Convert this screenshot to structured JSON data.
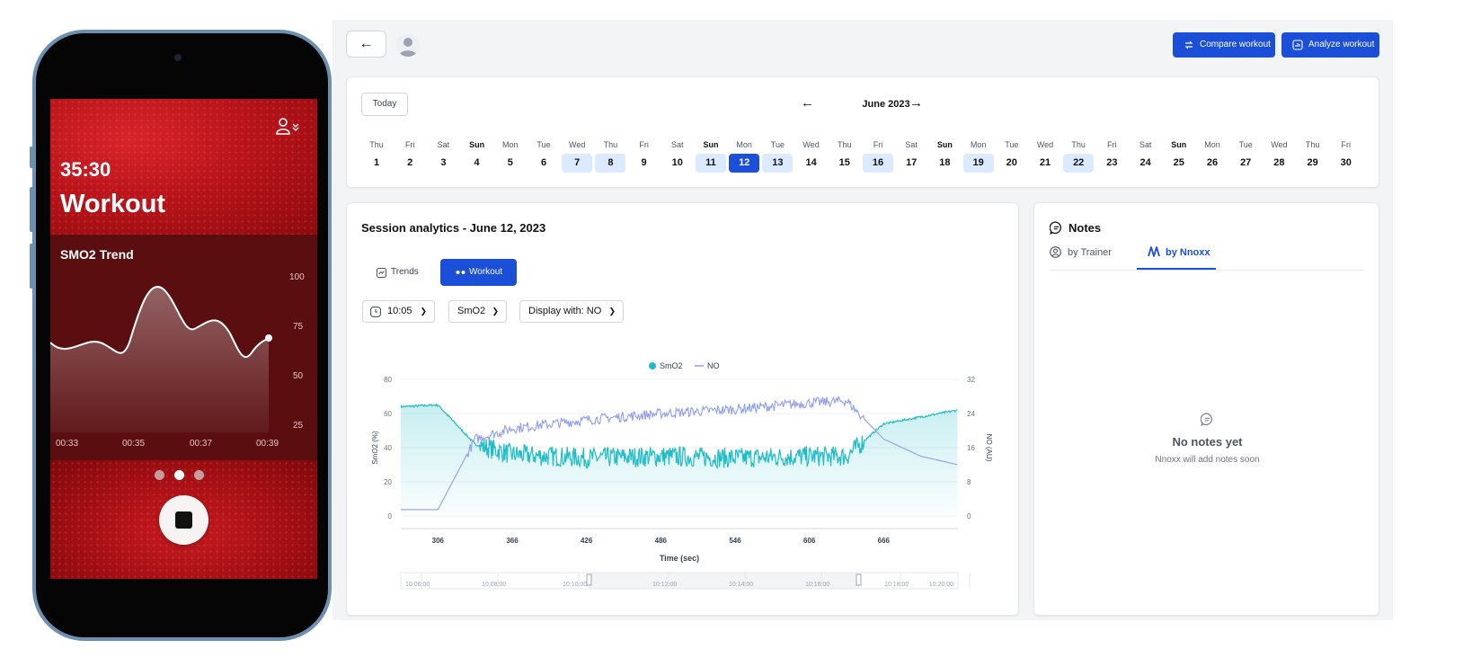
{
  "phone": {
    "time": "35:30",
    "title": "Workout",
    "chart_title": "SMO2 Trend",
    "y_ticks": [
      "100",
      "75",
      "50",
      "25"
    ],
    "x_ticks": [
      "00:33",
      "00:35",
      "00:37",
      "00:39"
    ],
    "pager_active_index": 1
  },
  "header": {
    "back_icon": "arrow-left-icon",
    "compare_label": "Compare workout",
    "analyze_label": "Analyze workout",
    "accent_color": "#1b4fd8"
  },
  "calendar": {
    "today_label": "Today",
    "month": "June 2023",
    "days": [
      {
        "dow": "Thu",
        "dom": "1"
      },
      {
        "dow": "Fri",
        "dom": "2"
      },
      {
        "dow": "Sat",
        "dom": "3"
      },
      {
        "dow": "Sun",
        "dom": "4"
      },
      {
        "dow": "Mon",
        "dom": "5"
      },
      {
        "dow": "Tue",
        "dom": "6"
      },
      {
        "dow": "Wed",
        "dom": "7",
        "hl": true
      },
      {
        "dow": "Thu",
        "dom": "8",
        "hl": true
      },
      {
        "dow": "Fri",
        "dom": "9"
      },
      {
        "dow": "Sat",
        "dom": "10"
      },
      {
        "dow": "Sun",
        "dom": "11",
        "hl": true
      },
      {
        "dow": "Mon",
        "dom": "12",
        "sel": true
      },
      {
        "dow": "Tue",
        "dom": "13",
        "hl": true
      },
      {
        "dow": "Wed",
        "dom": "14"
      },
      {
        "dow": "Thu",
        "dom": "15"
      },
      {
        "dow": "Fri",
        "dom": "16",
        "hl": true
      },
      {
        "dow": "Sat",
        "dom": "17"
      },
      {
        "dow": "Sun",
        "dom": "18"
      },
      {
        "dow": "Mon",
        "dom": "19",
        "hl": true
      },
      {
        "dow": "Tue",
        "dom": "20"
      },
      {
        "dow": "Wed",
        "dom": "21"
      },
      {
        "dow": "Thu",
        "dom": "22",
        "hl": true
      },
      {
        "dow": "Fri",
        "dom": "23"
      },
      {
        "dow": "Sat",
        "dom": "24"
      },
      {
        "dow": "Sun",
        "dom": "25"
      },
      {
        "dow": "Mon",
        "dom": "26"
      },
      {
        "dow": "Tue",
        "dom": "27"
      },
      {
        "dow": "Wed",
        "dom": "28"
      },
      {
        "dow": "Thu",
        "dom": "29"
      },
      {
        "dow": "Fri",
        "dom": "30"
      }
    ]
  },
  "session": {
    "title": "Session analytics - June 12, 2023",
    "tabs": {
      "trends": "Trends",
      "workout": "Workout"
    },
    "filters": {
      "time": "10:05",
      "metric": "SmO2",
      "display": "Display with: NO"
    }
  },
  "chart_data": {
    "type": "line",
    "legend": [
      {
        "name": "SmO2",
        "color": "#22bcc7"
      },
      {
        "name": "NO",
        "color": "#8e9df0"
      }
    ],
    "xlabel": "Time (sec)",
    "ylabel": "SmO2 (%)",
    "y2label": "NO (AU)",
    "x_ticks": [
      "306",
      "366",
      "426",
      "486",
      "546",
      "606",
      "666"
    ],
    "y_ticks": [
      "80",
      "60",
      "40",
      "20",
      "0"
    ],
    "y2_ticks": [
      "32",
      "24",
      "16",
      "8",
      "0"
    ],
    "xlim": [
      276,
      726
    ],
    "ylim": [
      0,
      80
    ],
    "y2lim": [
      0,
      32
    ],
    "smo2_keypoints": [
      [
        276,
        64
      ],
      [
        306,
        65
      ],
      [
        336,
        42
      ],
      [
        366,
        36
      ],
      [
        426,
        34
      ],
      [
        486,
        35
      ],
      [
        546,
        34
      ],
      [
        606,
        35
      ],
      [
        636,
        35
      ],
      [
        666,
        54
      ],
      [
        726,
        62
      ]
    ],
    "no_keypoints": [
      [
        276,
        1.5
      ],
      [
        306,
        1.5
      ],
      [
        336,
        18
      ],
      [
        366,
        20.5
      ],
      [
        426,
        22.5
      ],
      [
        486,
        24
      ],
      [
        546,
        25
      ],
      [
        606,
        26.5
      ],
      [
        636,
        27
      ],
      [
        666,
        18
      ],
      [
        696,
        14
      ],
      [
        726,
        12
      ]
    ],
    "timeline_labels": [
      "10:06:00",
      "10:08:00",
      "10:10:00",
      "10:12:00",
      "10:14:00",
      "10:16:00",
      "10:18:00",
      "10:20:00"
    ]
  },
  "notes": {
    "title": "Notes",
    "tab_trainer": "by Trainer",
    "tab_nnoxx": "by Nnoxx",
    "empty_title": "No notes yet",
    "empty_sub": "Nnoxx will add notes soon"
  }
}
